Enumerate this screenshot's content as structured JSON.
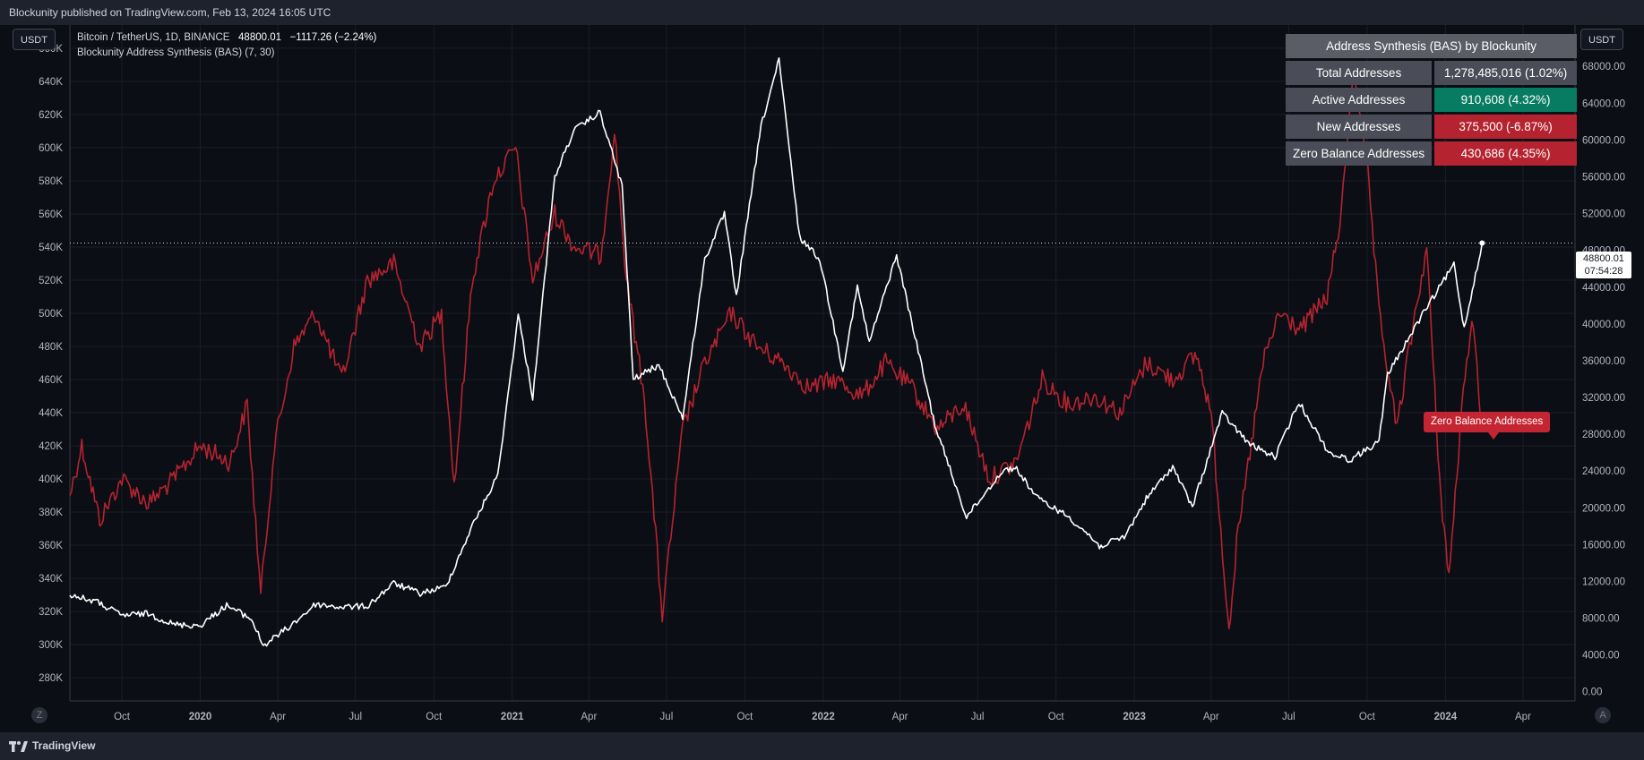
{
  "header": {
    "publisher_text": "Blockunity published on TradingView.com, Feb 13, 2024 16:05 UTC"
  },
  "footer": {
    "brand": "TradingView"
  },
  "legend": {
    "symbol": "Bitcoin / TetherUS, 1D, BINANCE",
    "last": "48800.01",
    "change": "−1117.26 (−2.24%)",
    "indicator": "Blockunity Address Synthesis (BAS) (7, 30)"
  },
  "units": {
    "left": "USDT",
    "right": "USDT"
  },
  "corners": {
    "left": "Z",
    "right": "A"
  },
  "price_tag": {
    "price": "48800.01",
    "countdown": "07:54:28"
  },
  "line_tag": "Zero Balance Addresses",
  "table": {
    "title": "Address Synthesis (BAS) by Blockunity",
    "rows": [
      {
        "label": "Total Addresses",
        "value": "1,278,485,016 (1.02%)",
        "color": "#4a4d57"
      },
      {
        "label": "Active Addresses",
        "value": "910,608 (4.32%)",
        "color": "#087c62"
      },
      {
        "label": "New Addresses",
        "value": "375,500 (-6.87%)",
        "color": "#b4232f"
      },
      {
        "label": "Zero Balance Addresses",
        "value": "430,686 (4.35%)",
        "color": "#b4232f"
      }
    ]
  },
  "colors": {
    "background": "#0c0e15",
    "btc": "#ffffff",
    "zba": "#b5232f",
    "grid": "#1b1e27"
  },
  "chart_data": {
    "type": "line",
    "x_axis": {
      "ticks": [
        "Oct",
        "2020",
        "Apr",
        "Jul",
        "Oct",
        "2021",
        "Apr",
        "Jul",
        "Oct",
        "2022",
        "Apr",
        "Jul",
        "Oct",
        "2023",
        "Apr",
        "Jul",
        "Oct",
        "2024",
        "Apr"
      ],
      "range": [
        "2019-08-01",
        "2024-06-01"
      ]
    },
    "left_axis": {
      "ticks": [
        "660K",
        "640K",
        "620K",
        "600K",
        "580K",
        "560K",
        "540K",
        "520K",
        "500K",
        "480K",
        "460K",
        "440K",
        "420K",
        "400K",
        "380K",
        "360K",
        "340K",
        "320K",
        "300K",
        "280K"
      ],
      "range": [
        266000,
        674000
      ]
    },
    "right_axis": {
      "ticks": [
        "68000.00",
        "64000.00",
        "60000.00",
        "56000.00",
        "52000.00",
        "48000.00",
        "44000.00",
        "40000.00",
        "36000.00",
        "32000.00",
        "28000.00",
        "24000.00",
        "20000.00",
        "16000.00",
        "12000.00",
        "8000.00",
        "4000.00",
        "0.00"
      ],
      "range": [
        -1000,
        72500
      ]
    },
    "last_price": 48800.01,
    "series": [
      {
        "axis": "right",
        "x": [
          "2019-08-01",
          "2019-09-01",
          "2019-10-01",
          "2019-11-01",
          "2019-12-01",
          "2020-01-01",
          "2020-02-01",
          "2020-03-01",
          "2020-03-15",
          "2020-04-15",
          "2020-05-15",
          "2020-06-15",
          "2020-07-15",
          "2020-08-15",
          "2020-09-15",
          "2020-10-15",
          "2020-11-15",
          "2020-12-15",
          "2021-01-08",
          "2021-01-25",
          "2021-02-20",
          "2021-03-14",
          "2021-04-14",
          "2021-05-10",
          "2021-05-23",
          "2021-06-22",
          "2021-07-20",
          "2021-08-15",
          "2021-09-07",
          "2021-09-21",
          "2021-10-20",
          "2021-11-10",
          "2021-12-04",
          "2021-12-28",
          "2022-01-24",
          "2022-02-10",
          "2022-02-24",
          "2022-03-28",
          "2022-05-12",
          "2022-06-18",
          "2022-07-30",
          "2022-08-14",
          "2022-09-10",
          "2022-10-15",
          "2022-11-09",
          "2022-11-21",
          "2022-12-20",
          "2023-01-15",
          "2023-02-15",
          "2023-03-10",
          "2023-04-14",
          "2023-05-15",
          "2023-06-15",
          "2023-07-13",
          "2023-08-17",
          "2023-09-11",
          "2023-10-15",
          "2023-10-25",
          "2023-12-05",
          "2024-01-11",
          "2024-01-23",
          "2024-02-13"
        ],
        "y": [
          10500,
          9800,
          8300,
          8500,
          7300,
          7200,
          9400,
          7900,
          5000,
          7100,
          9500,
          9200,
          9300,
          11800,
          10700,
          11400,
          18000,
          23500,
          41000,
          32000,
          56000,
          61000,
          63000,
          55000,
          34000,
          35500,
          29800,
          47000,
          52000,
          43000,
          61500,
          68700,
          49500,
          47000,
          35000,
          44000,
          38000,
          47500,
          29000,
          19000,
          24000,
          24400,
          21000,
          19100,
          17000,
          15800,
          16800,
          21000,
          24500,
          20100,
          30300,
          27000,
          25500,
          31500,
          26000,
          25200,
          27200,
          34500,
          41000,
          46500,
          39500,
          48800.01
        ]
      },
      {
        "axis": "left",
        "x": [
          "2019-08-01",
          "2019-08-15",
          "2019-09-05",
          "2019-10-01",
          "2019-11-01",
          "2019-12-01",
          "2020-01-01",
          "2020-02-05",
          "2020-02-25",
          "2020-03-12",
          "2020-03-28",
          "2020-04-20",
          "2020-05-15",
          "2020-06-15",
          "2020-07-15",
          "2020-08-15",
          "2020-09-15",
          "2020-10-10",
          "2020-10-25",
          "2020-11-15",
          "2020-12-10",
          "2021-01-05",
          "2021-01-25",
          "2021-02-20",
          "2021-03-15",
          "2021-04-15",
          "2021-05-01",
          "2021-05-15",
          "2021-06-05",
          "2021-06-26",
          "2021-07-20",
          "2021-08-15",
          "2021-09-15",
          "2021-10-15",
          "2021-11-15",
          "2021-12-15",
          "2022-01-15",
          "2022-02-15",
          "2022-03-15",
          "2022-04-15",
          "2022-05-15",
          "2022-06-15",
          "2022-07-15",
          "2022-08-15",
          "2022-09-15",
          "2022-10-15",
          "2022-11-15",
          "2022-12-15",
          "2023-01-15",
          "2023-02-15",
          "2023-03-15",
          "2023-04-01",
          "2023-04-22",
          "2023-05-01",
          "2023-06-01",
          "2023-06-20",
          "2023-07-15",
          "2023-08-15",
          "2023-09-01",
          "2023-09-15",
          "2023-10-01",
          "2023-10-15",
          "2023-11-05",
          "2023-11-20",
          "2023-12-10",
          "2023-12-25",
          "2024-01-05",
          "2024-01-20",
          "2024-02-01",
          "2024-02-13"
        ],
        "y": [
          390000,
          420000,
          375000,
          400000,
          385000,
          400000,
          420000,
          410000,
          445000,
          330000,
          420000,
          480000,
          500000,
          460000,
          520000,
          530000,
          480000,
          500000,
          396000,
          520000,
          580000,
          600000,
          520000,
          560000,
          540000,
          535000,
          610000,
          520000,
          450000,
          318000,
          430000,
          470000,
          500000,
          480000,
          470000,
          455000,
          460000,
          450000,
          470000,
          455000,
          430000,
          445000,
          400000,
          410000,
          460000,
          445000,
          450000,
          440000,
          470000,
          460000,
          475000,
          440000,
          310000,
          360000,
          470000,
          500000,
          490000,
          510000,
          560000,
          650000,
          590000,
          500000,
          430000,
          480000,
          540000,
          400000,
          340000,
          440000,
          500000,
          430686
        ]
      }
    ]
  }
}
